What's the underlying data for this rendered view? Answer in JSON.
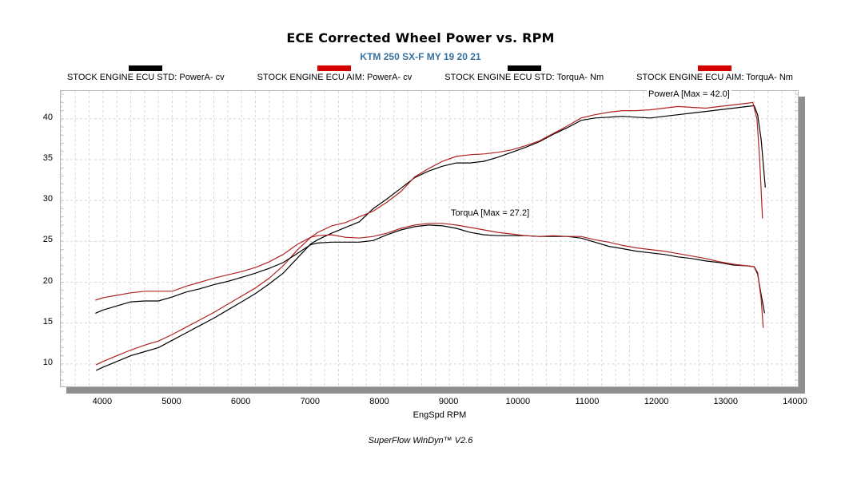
{
  "header": {
    "title": "ECE Corrected Wheel Power vs. RPM",
    "subtitle": "KTM 250 SX-F MY 19 20 21",
    "subtitle_color": "#36719f"
  },
  "legend": {
    "items": [
      {
        "label": "STOCK ENGINE ECU STD: PowerA- cv",
        "color": "#000000"
      },
      {
        "label": "STOCK ENGINE ECU AIM: PowerA- cv",
        "color": "#d40000"
      },
      {
        "label": "STOCK ENGINE ECU STD: TorquA- Nm",
        "color": "#000000"
      },
      {
        "label": "STOCK ENGINE ECU AIM: TorquA- Nm",
        "color": "#d40000"
      }
    ]
  },
  "annotations": {
    "power_max": "PowerA [Max = 42.0]",
    "torque_max": "TorquA [Max = 27.2]"
  },
  "footer": {
    "credit": "SuperFlow WinDyn™ V2.6"
  },
  "chart_data": {
    "type": "line",
    "title": "ECE Corrected Wheel Power vs. RPM",
    "subtitle": "KTM 250 SX-F MY 19 20 21",
    "xlabel": "EngSpd RPM",
    "ylabel": "",
    "x_ticks": [
      4000,
      5000,
      6000,
      7000,
      8000,
      9000,
      10000,
      11000,
      12000,
      13000,
      14000
    ],
    "y_ticks": [
      10,
      15,
      20,
      25,
      30,
      35,
      40
    ],
    "x_range": [
      3390,
      14030
    ],
    "y_range": [
      7.25,
      43.4
    ],
    "grid": {
      "x_minor_step": 200,
      "y_major_step": 5,
      "style": "dashed-light"
    },
    "legend_position": "top",
    "colors": {
      "std": "#000000",
      "aim": "#b02323",
      "grid": "#d8d8d8",
      "border": "#aeb6c2",
      "shadow": "#8f8f8f"
    },
    "series": [
      {
        "name": "STOCK ENGINE ECU STD: PowerA- cv",
        "unit": "cv",
        "color": "std",
        "max": 41.6,
        "points": [
          [
            3900,
            9.2
          ],
          [
            4000,
            9.6
          ],
          [
            4200,
            10.3
          ],
          [
            4400,
            11.0
          ],
          [
            4600,
            11.5
          ],
          [
            4800,
            12.0
          ],
          [
            5000,
            12.9
          ],
          [
            5200,
            13.8
          ],
          [
            5400,
            14.7
          ],
          [
            5600,
            15.6
          ],
          [
            5800,
            16.6
          ],
          [
            6000,
            17.6
          ],
          [
            6200,
            18.6
          ],
          [
            6400,
            19.8
          ],
          [
            6600,
            21.1
          ],
          [
            6800,
            22.9
          ],
          [
            7000,
            24.7
          ],
          [
            7100,
            25.2
          ],
          [
            7300,
            26.0
          ],
          [
            7500,
            26.7
          ],
          [
            7700,
            27.4
          ],
          [
            7900,
            29.0
          ],
          [
            8100,
            30.2
          ],
          [
            8300,
            31.5
          ],
          [
            8500,
            32.8
          ],
          [
            8700,
            33.6
          ],
          [
            8900,
            34.2
          ],
          [
            9100,
            34.6
          ],
          [
            9300,
            34.6
          ],
          [
            9500,
            34.8
          ],
          [
            9700,
            35.3
          ],
          [
            9900,
            35.9
          ],
          [
            10100,
            36.5
          ],
          [
            10300,
            37.2
          ],
          [
            10500,
            38.1
          ],
          [
            10700,
            38.9
          ],
          [
            10900,
            39.8
          ],
          [
            11100,
            40.1
          ],
          [
            11300,
            40.2
          ],
          [
            11500,
            40.3
          ],
          [
            11700,
            40.2
          ],
          [
            11900,
            40.1
          ],
          [
            12100,
            40.3
          ],
          [
            12300,
            40.5
          ],
          [
            12500,
            40.7
          ],
          [
            12700,
            40.9
          ],
          [
            12900,
            41.1
          ],
          [
            13100,
            41.3
          ],
          [
            13300,
            41.5
          ],
          [
            13400,
            41.6
          ],
          [
            13450,
            40.5
          ],
          [
            13500,
            37.5
          ],
          [
            13560,
            31.6
          ]
        ]
      },
      {
        "name": "STOCK ENGINE ECU AIM: PowerA- cv",
        "unit": "cv",
        "color": "aim",
        "max": 42.0,
        "points": [
          [
            3900,
            9.9
          ],
          [
            4000,
            10.3
          ],
          [
            4200,
            11.0
          ],
          [
            4400,
            11.7
          ],
          [
            4600,
            12.3
          ],
          [
            4800,
            12.8
          ],
          [
            5000,
            13.6
          ],
          [
            5200,
            14.5
          ],
          [
            5400,
            15.4
          ],
          [
            5600,
            16.3
          ],
          [
            5800,
            17.3
          ],
          [
            6000,
            18.3
          ],
          [
            6200,
            19.3
          ],
          [
            6400,
            20.5
          ],
          [
            6600,
            22.0
          ],
          [
            6800,
            23.9
          ],
          [
            7000,
            25.5
          ],
          [
            7100,
            26.1
          ],
          [
            7300,
            26.9
          ],
          [
            7500,
            27.3
          ],
          [
            7700,
            28.0
          ],
          [
            7900,
            28.7
          ],
          [
            8100,
            29.8
          ],
          [
            8300,
            31.1
          ],
          [
            8500,
            32.9
          ],
          [
            8700,
            33.9
          ],
          [
            8900,
            34.8
          ],
          [
            9100,
            35.4
          ],
          [
            9300,
            35.6
          ],
          [
            9500,
            35.7
          ],
          [
            9700,
            35.9
          ],
          [
            9900,
            36.2
          ],
          [
            10100,
            36.7
          ],
          [
            10300,
            37.3
          ],
          [
            10500,
            38.2
          ],
          [
            10700,
            39.1
          ],
          [
            10900,
            40.1
          ],
          [
            11100,
            40.5
          ],
          [
            11300,
            40.8
          ],
          [
            11500,
            41.0
          ],
          [
            11700,
            41.0
          ],
          [
            11900,
            41.1
          ],
          [
            12100,
            41.3
          ],
          [
            12300,
            41.5
          ],
          [
            12500,
            41.4
          ],
          [
            12700,
            41.3
          ],
          [
            12900,
            41.5
          ],
          [
            13100,
            41.7
          ],
          [
            13300,
            41.9
          ],
          [
            13380,
            42.0
          ],
          [
            13440,
            40.0
          ],
          [
            13480,
            35.0
          ],
          [
            13520,
            27.8
          ]
        ]
      },
      {
        "name": "STOCK ENGINE ECU STD: TorquA- Nm",
        "unit": "Nm",
        "color": "std",
        "max": 27.0,
        "points": [
          [
            3890,
            16.2
          ],
          [
            4000,
            16.6
          ],
          [
            4200,
            17.1
          ],
          [
            4400,
            17.6
          ],
          [
            4600,
            17.7
          ],
          [
            4800,
            17.7
          ],
          [
            5000,
            18.2
          ],
          [
            5200,
            18.8
          ],
          [
            5400,
            19.2
          ],
          [
            5600,
            19.7
          ],
          [
            5800,
            20.1
          ],
          [
            6000,
            20.6
          ],
          [
            6200,
            21.1
          ],
          [
            6400,
            21.7
          ],
          [
            6600,
            22.4
          ],
          [
            6800,
            23.5
          ],
          [
            7000,
            24.6
          ],
          [
            7100,
            24.8
          ],
          [
            7300,
            24.9
          ],
          [
            7500,
            24.9
          ],
          [
            7700,
            24.9
          ],
          [
            7900,
            25.1
          ],
          [
            8100,
            25.8
          ],
          [
            8300,
            26.4
          ],
          [
            8500,
            26.8
          ],
          [
            8700,
            27.0
          ],
          [
            8900,
            26.9
          ],
          [
            9100,
            26.6
          ],
          [
            9300,
            26.1
          ],
          [
            9500,
            25.8
          ],
          [
            9700,
            25.7
          ],
          [
            9900,
            25.7
          ],
          [
            10100,
            25.7
          ],
          [
            10300,
            25.6
          ],
          [
            10500,
            25.6
          ],
          [
            10700,
            25.6
          ],
          [
            10900,
            25.4
          ],
          [
            11100,
            24.9
          ],
          [
            11300,
            24.4
          ],
          [
            11500,
            24.1
          ],
          [
            11700,
            23.8
          ],
          [
            11900,
            23.6
          ],
          [
            12100,
            23.4
          ],
          [
            12300,
            23.1
          ],
          [
            12500,
            22.9
          ],
          [
            12700,
            22.6
          ],
          [
            12900,
            22.4
          ],
          [
            13100,
            22.1
          ],
          [
            13300,
            22.0
          ],
          [
            13400,
            21.9
          ],
          [
            13450,
            21.0
          ],
          [
            13500,
            18.5
          ],
          [
            13550,
            16.2
          ]
        ]
      },
      {
        "name": "STOCK ENGINE ECU AIM: TorquA- Nm",
        "unit": "Nm",
        "color": "aim",
        "max": 27.2,
        "points": [
          [
            3890,
            17.8
          ],
          [
            4000,
            18.1
          ],
          [
            4200,
            18.4
          ],
          [
            4400,
            18.7
          ],
          [
            4600,
            18.9
          ],
          [
            4800,
            18.9
          ],
          [
            5000,
            18.9
          ],
          [
            5200,
            19.5
          ],
          [
            5400,
            20.0
          ],
          [
            5600,
            20.5
          ],
          [
            5800,
            20.9
          ],
          [
            6000,
            21.3
          ],
          [
            6200,
            21.8
          ],
          [
            6400,
            22.5
          ],
          [
            6600,
            23.4
          ],
          [
            6800,
            24.6
          ],
          [
            7000,
            25.5
          ],
          [
            7100,
            25.7
          ],
          [
            7300,
            25.8
          ],
          [
            7500,
            25.5
          ],
          [
            7700,
            25.4
          ],
          [
            7900,
            25.6
          ],
          [
            8100,
            26.0
          ],
          [
            8300,
            26.6
          ],
          [
            8500,
            27.0
          ],
          [
            8700,
            27.2
          ],
          [
            8900,
            27.2
          ],
          [
            9100,
            27.0
          ],
          [
            9300,
            26.7
          ],
          [
            9500,
            26.4
          ],
          [
            9700,
            26.1
          ],
          [
            9900,
            25.9
          ],
          [
            10100,
            25.7
          ],
          [
            10300,
            25.6
          ],
          [
            10500,
            25.7
          ],
          [
            10700,
            25.6
          ],
          [
            10900,
            25.6
          ],
          [
            11100,
            25.2
          ],
          [
            11300,
            24.9
          ],
          [
            11500,
            24.5
          ],
          [
            11700,
            24.2
          ],
          [
            11900,
            24.0
          ],
          [
            12100,
            23.8
          ],
          [
            12300,
            23.5
          ],
          [
            12500,
            23.2
          ],
          [
            12700,
            22.9
          ],
          [
            12900,
            22.5
          ],
          [
            13100,
            22.2
          ],
          [
            13300,
            22.0
          ],
          [
            13400,
            21.9
          ],
          [
            13450,
            21.2
          ],
          [
            13500,
            18.0
          ],
          [
            13530,
            14.4
          ]
        ]
      }
    ],
    "annotations": [
      {
        "text": "PowerA [Max = 42.0]",
        "near_rpm": 12400,
        "near_value": 43.0
      },
      {
        "text": "TorquA [Max = 27.2]",
        "near_rpm": 9500,
        "near_value": 28.6
      }
    ]
  }
}
